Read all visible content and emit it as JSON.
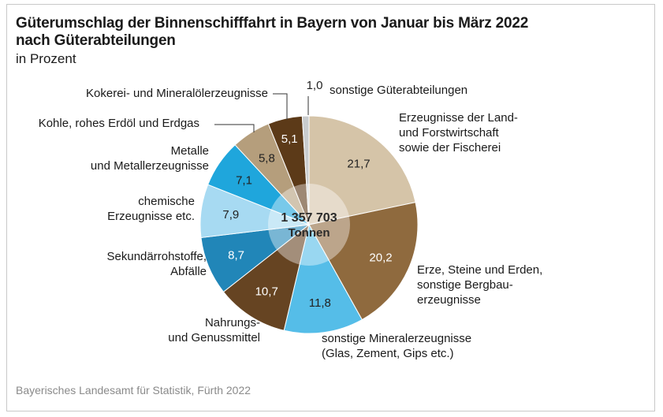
{
  "title_line1": "Güterumschlag der Binnenschifffahrt in Bayern von Januar bis März 2022",
  "title_line2": "nach Güterabteilungen",
  "subtitle": "in Prozent",
  "source": "Bayerisches Landesamt für Statistik, Fürth 2022",
  "chart_data": {
    "type": "pie",
    "total_value": "1 357 703",
    "total_unit": "Tonnen",
    "slices": [
      {
        "label": [
          "Erzeugnisse der Land-",
          "und Forstwirtschaft",
          "sowie der Fischerei"
        ],
        "value": 21.7,
        "value_label": "21,7",
        "color": "#d5c4a8",
        "text_color": "#222222"
      },
      {
        "label": [
          "Erze, Steine und Erden,",
          "sonstige Bergbau-",
          "erzeugnisse"
        ],
        "value": 20.2,
        "value_label": "20,2",
        "color": "#8f6a3e",
        "text_color": "#ffffff"
      },
      {
        "label": [
          "sonstige Mineralerzeugnisse",
          "(Glas, Zement, Gips etc.)"
        ],
        "value": 11.8,
        "value_label": "11,8",
        "color": "#55bde8",
        "text_color": "#222222"
      },
      {
        "label": [
          "Nahrungs-",
          "und Genussmittel"
        ],
        "value": 10.7,
        "value_label": "10,7",
        "color": "#664422",
        "text_color": "#ffffff"
      },
      {
        "label": [
          "Sekundärrohstoffe,",
          "Abfälle"
        ],
        "value": 8.7,
        "value_label": "8,7",
        "color": "#2186b8",
        "text_color": "#ffffff"
      },
      {
        "label": [
          "chemische",
          "Erzeugnisse etc."
        ],
        "value": 7.9,
        "value_label": "7,9",
        "color": "#a7daf2",
        "text_color": "#222222"
      },
      {
        "label": [
          "Metalle",
          "und Metallerzeugnisse"
        ],
        "value": 7.1,
        "value_label": "7,1",
        "color": "#1fa6dc",
        "text_color": "#222222"
      },
      {
        "label": [
          "Kohle, rohes Erdöl und Erdgas"
        ],
        "value": 5.8,
        "value_label": "5,8",
        "color": "#b59e7c",
        "text_color": "#222222"
      },
      {
        "label": [
          "Kokerei- und Mineralölerzeugnisse"
        ],
        "value": 5.1,
        "value_label": "5,1",
        "color": "#5c3a18",
        "text_color": "#ffffff"
      },
      {
        "label": [
          "sonstige Güterabteilungen"
        ],
        "value": 1.0,
        "value_label": "1,0",
        "color": "#c9ccce",
        "text_color": "#222222"
      }
    ]
  }
}
